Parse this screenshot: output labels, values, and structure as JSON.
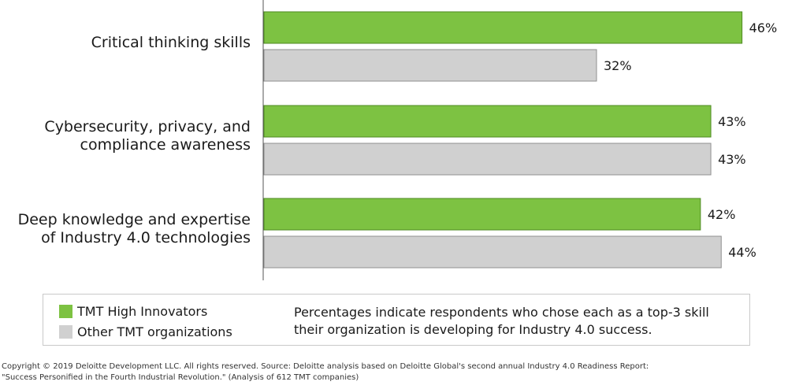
{
  "chart_data": {
    "type": "bar",
    "orientation": "horizontal",
    "categories": [
      "Critical thinking skills",
      "Cybersecurity, privacy, and compliance awareness",
      "Deep knowledge and expertise of Industry 4.0 technologies"
    ],
    "category_lines": [
      [
        "Critical thinking skills"
      ],
      [
        "Cybersecurity, privacy, and",
        "compliance awareness"
      ],
      [
        "Deep knowledge and expertise",
        "of Industry 4.0 technologies"
      ]
    ],
    "series": [
      {
        "name": "TMT High Innovators",
        "color": "#7dc242",
        "values": [
          46,
          43,
          42
        ],
        "labels": [
          "46%",
          "43%",
          "42%"
        ]
      },
      {
        "name": "Other TMT organizations",
        "color": "#d0d0d0",
        "values": [
          32,
          43,
          44
        ],
        "labels": [
          "32%",
          "43%",
          "44%"
        ]
      }
    ],
    "xlim": [
      0,
      48
    ],
    "grid": false,
    "legend_placement": "bottom"
  },
  "legend": {
    "items": [
      "TMT High Innovators",
      "Other TMT organizations"
    ],
    "note_lines": [
      "Percentages indicate respondents who chose each as a top-3 skill",
      "their organization is developing for Industry 4.0 success."
    ]
  },
  "footnote": {
    "line1": "Copyright © 2019 Deloitte Development LLC. All rights reserved. Source: Deloitte analysis based on Deloitte Global's second annual Industry 4.0 Readiness Report:",
    "line2": "\"Success Personified in the Fourth Industrial Revolution.\" (Analysis of 612 TMT companies)"
  }
}
